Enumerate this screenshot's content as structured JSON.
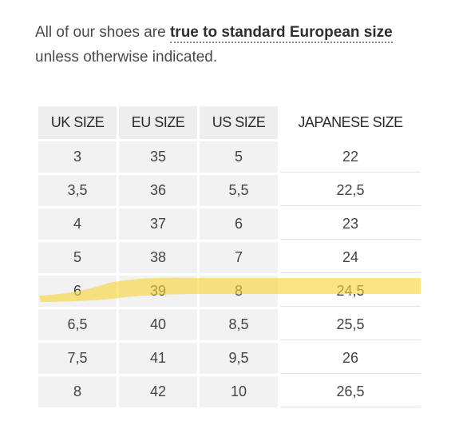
{
  "intro": {
    "text_before": "All of our shoes are ",
    "link_text": "true to standard European size",
    "text_after": " unless otherwise indicated."
  },
  "table": {
    "headers": [
      "UK SIZE",
      "EU SIZE",
      "US SIZE",
      "JAPANESE SIZE"
    ],
    "rows": [
      [
        "3",
        "35",
        "5",
        "22"
      ],
      [
        "3,5",
        "36",
        "5,5",
        "22,5"
      ],
      [
        "4",
        "37",
        "6",
        "23"
      ],
      [
        "5",
        "38",
        "7",
        "24"
      ],
      [
        "6",
        "39",
        "8",
        "24,5"
      ],
      [
        "6,5",
        "40",
        "8,5",
        "25,5"
      ],
      [
        "7,5",
        "41",
        "9,5",
        "26"
      ],
      [
        "8",
        "42",
        "10",
        "26,5"
      ]
    ],
    "highlighted_row": 4
  },
  "colors": {
    "highlight": "#f7d437",
    "header_bg": "#eeeeee",
    "cell_bg": "#f2f2f2"
  }
}
